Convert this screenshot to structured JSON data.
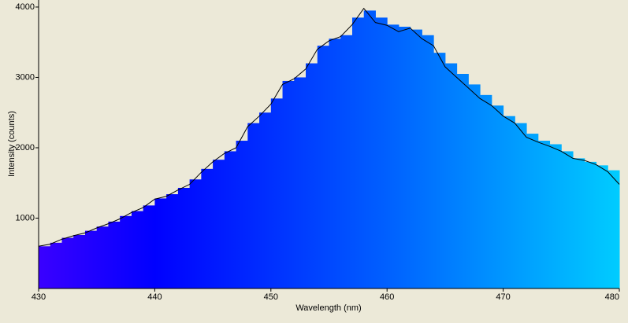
{
  "chart_data": {
    "type": "histogram",
    "xlabel": "Wavelength (nm)",
    "ylabel": "Intensity (counts)",
    "xlim": [
      430,
      480
    ],
    "xticks": [
      430,
      440,
      450,
      460,
      470,
      480
    ],
    "ylim": [
      0,
      4100
    ],
    "yticks": [
      1000,
      2000,
      3000,
      4000
    ],
    "bins": [
      430,
      431,
      432,
      433,
      434,
      435,
      436,
      437,
      438,
      439,
      440,
      441,
      442,
      443,
      444,
      445,
      446,
      447,
      448,
      449,
      450,
      451,
      452,
      453,
      454,
      455,
      456,
      457,
      458,
      459,
      460,
      461,
      462,
      463,
      464,
      465,
      466,
      467,
      468,
      469,
      470,
      471,
      472,
      473,
      474,
      475,
      476,
      477,
      478,
      479,
      480
    ],
    "counts": [
      600,
      650,
      720,
      760,
      820,
      880,
      950,
      1030,
      1100,
      1180,
      1280,
      1340,
      1430,
      1550,
      1700,
      1830,
      1950,
      2100,
      2350,
      2500,
      2700,
      2950,
      3000,
      3200,
      3450,
      3550,
      3600,
      3850,
      3950,
      3850,
      3750,
      3720,
      3680,
      3600,
      3350,
      3200,
      3050,
      2900,
      2750,
      2600,
      2450,
      2350,
      2200,
      2100,
      2050,
      1950,
      1850,
      1800,
      1750,
      1680
    ],
    "color_stops": [
      {
        "value": 430,
        "color": "#3a00ff"
      },
      {
        "value": 440,
        "color": "#0000ff"
      },
      {
        "value": 460,
        "color": "#0060ff"
      },
      {
        "value": 480,
        "color": "#00ccff"
      }
    ],
    "line": {
      "color": "#000000",
      "x": [
        430,
        431,
        432,
        433,
        434,
        435,
        436,
        437,
        438,
        439,
        440,
        441,
        442,
        443,
        444,
        445,
        446,
        447,
        448,
        449,
        450,
        451,
        452,
        453,
        454,
        455,
        456,
        457,
        458,
        459,
        460,
        461,
        462,
        463,
        464,
        465,
        466,
        467,
        468,
        469,
        470,
        471,
        472,
        473,
        474,
        475,
        476,
        477,
        478,
        479,
        480
      ],
      "values": [
        600,
        630,
        700,
        750,
        790,
        860,
        920,
        990,
        1080,
        1150,
        1270,
        1310,
        1400,
        1480,
        1650,
        1800,
        1920,
        2000,
        2300,
        2450,
        2620,
        2900,
        2980,
        3120,
        3400,
        3520,
        3580,
        3750,
        3980,
        3780,
        3740,
        3650,
        3700,
        3550,
        3450,
        3150,
        3000,
        2850,
        2700,
        2600,
        2450,
        2350,
        2150,
        2080,
        2020,
        1950,
        1850,
        1820,
        1760,
        1660,
        1480
      ]
    },
    "background": "#ece9d8"
  }
}
